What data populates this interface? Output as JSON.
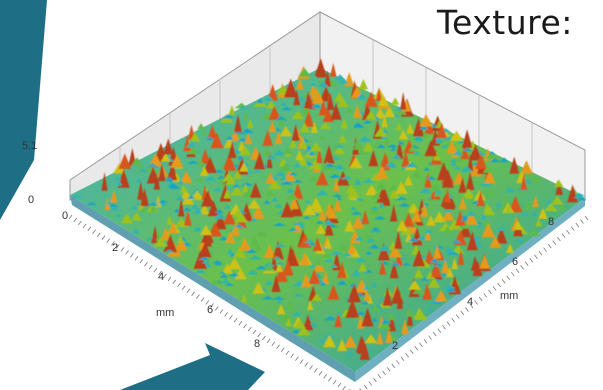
{
  "title": "Texture:",
  "colors": {
    "accent_teal": "#1e6f86",
    "surface_low": "#1aa3c9",
    "surface_mid": "#a8c020",
    "surface_high": "#d8501a"
  },
  "axes": {
    "z_ticks": [
      "5.1",
      "0"
    ],
    "y_ticks": [
      "0",
      "2",
      "4",
      "6",
      "8"
    ],
    "y_unit": "mm",
    "x_ticks": [
      "8",
      "6",
      "4",
      "2"
    ],
    "x_unit": "mm"
  }
}
